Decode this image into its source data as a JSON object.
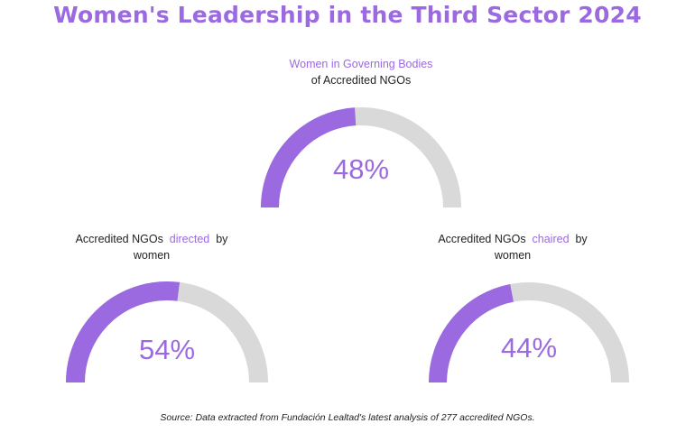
{
  "header": {
    "title": "Women's Leadership in the Third Sector 2024"
  },
  "colors": {
    "accent": "#9b6ae0",
    "track": "#d9d9d9",
    "text": "#1f1f1f"
  },
  "gauges": [
    {
      "label_accent": "Women in Governing Bodies",
      "label_rest": "of Accredited NGOs",
      "value_label": "48%"
    },
    {
      "label_pre": "Accredited NGOs",
      "label_accent": "directed",
      "label_post": "by",
      "label_line2": "women",
      "value_label": "54%"
    },
    {
      "label_pre": "Accredited NGOs",
      "label_accent": "chaired",
      "label_post": "by",
      "label_line2": "women",
      "value_label": "44%"
    }
  ],
  "chart_data": [
    {
      "type": "gauge",
      "title": "Women in Governing Bodies of Accredited NGOs",
      "value": 48,
      "max": 100,
      "unit": "%"
    },
    {
      "type": "gauge",
      "title": "Accredited NGOs directed by women",
      "value": 54,
      "max": 100,
      "unit": "%"
    },
    {
      "type": "gauge",
      "title": "Accredited NGOs chaired by women",
      "value": 44,
      "max": 100,
      "unit": "%"
    }
  ],
  "footer": {
    "source": "Source: Data extracted from Fundación Lealtad's latest analysis of 277 accredited NGOs."
  }
}
